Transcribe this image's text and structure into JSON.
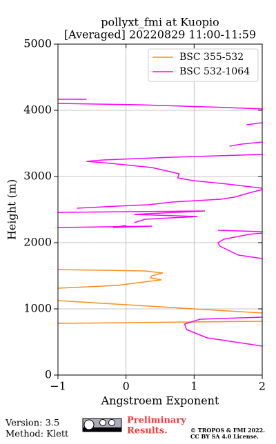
{
  "chart_data": {
    "type": "line",
    "title": "pollyxt_fmi at Kuopio",
    "subtitle": "[Averaged] 20220829 11:00-11:59",
    "x_label": "Angstroem Exponent",
    "y_label": "Height (m)",
    "xlim": [
      -1,
      2
    ],
    "ylim": [
      0,
      5000
    ],
    "xticks": [
      {
        "value": -1,
        "label": "−1"
      },
      0,
      1,
      2
    ],
    "yticks": [
      0,
      1000,
      2000,
      3000,
      4000,
      5000
    ],
    "grid": true,
    "legend": "upper right",
    "series": [
      {
        "name": "BSC 355-532",
        "color": "#ff8c1a",
        "x": [
          2.0,
          -1.0,
          null,
          -1.0,
          2.0,
          null,
          -1.0,
          -0.13,
          0.18,
          0.43,
          0.52,
          0.36,
          0.38,
          0.54,
          0.28,
          -1.0
        ],
        "y": [
          812,
          781,
          null,
          1125,
          937,
          null,
          1312,
          1354,
          1396,
          1427,
          1437,
          1469,
          1500,
          1542,
          1573,
          1594
        ]
      },
      {
        "name": "BSC 532-1064",
        "color": "#ff00ff",
        "x": [
          2.0,
          1.19,
          0.89,
          0.86,
          1.09,
          2.0,
          null,
          2.0,
          1.65,
          1.38,
          1.35,
          1.44,
          1.8,
          2.0,
          null,
          1.35,
          2.0,
          null,
          -1.0,
          0.38,
          -0.19,
          0.0,
          null,
          0.12,
          0.28,
          1.05,
          0.12,
          1.16,
          -1.0,
          null,
          -0.72,
          -0.13,
          0.33,
          0.68,
          1.39,
          1.59,
          1.8,
          2.0,
          null,
          2.0,
          1.49,
          0.99,
          0.76,
          0.78,
          0.38,
          -0.22,
          -0.58,
          -0.33,
          0.68,
          2.0,
          null,
          1.52,
          1.7,
          2.0,
          null,
          1.77,
          2.0,
          null,
          2.0,
          1.49,
          0.19,
          -1.0,
          null,
          -1.0,
          -0.58
        ],
        "y": [
          437,
          562,
          687,
          771,
          844,
          875,
          null,
          1760,
          1812,
          1948,
          2000,
          2052,
          2125,
          2146,
          null,
          2187,
          2167,
          null,
          2229,
          2250,
          2229,
          2260,
          null,
          2302,
          2354,
          2396,
          2427,
          2479,
          2458,
          null,
          2521,
          2552,
          2573,
          2615,
          2656,
          2687,
          2750,
          2802,
          null,
          2823,
          2885,
          2937,
          2979,
          3042,
          3135,
          3198,
          3229,
          3250,
          3292,
          3333,
          null,
          3458,
          3490,
          3521,
          null,
          3781,
          3812,
          null,
          4021,
          4042,
          4083,
          4104,
          null,
          4167,
          4167
        ]
      }
    ]
  },
  "footer": {
    "version": "Version: 3.5",
    "method": "Method: Klett",
    "preliminary": "Preliminary",
    "results": "Results.",
    "copyright": "© TROPOS & FMI 2022.",
    "license": "CC BY SA 4.0 License."
  }
}
